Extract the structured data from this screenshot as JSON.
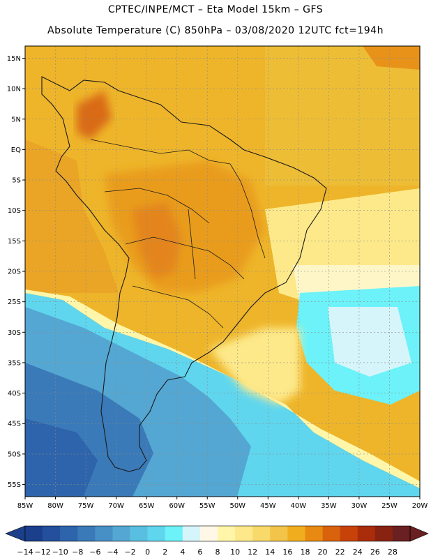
{
  "header": {
    "line1": "CPTEC/INPE/MCT –  Eta Model 15km – GFS",
    "line2": "Absolute Temperature (C) 850hPa – 03/08/2020 12UTC fct=194h"
  },
  "map": {
    "lat_labels": [
      "15N",
      "10N",
      "5N",
      "EQ",
      "5S",
      "10S",
      "15S",
      "20S",
      "25S",
      "30S",
      "35S",
      "40S",
      "45S",
      "50S",
      "55S"
    ],
    "lon_labels": [
      "85W",
      "80W",
      "75W",
      "70W",
      "65W",
      "60W",
      "55W",
      "50W",
      "45W",
      "40W",
      "35W",
      "30W",
      "25W",
      "20W"
    ],
    "lon_range": [
      -85,
      -20
    ],
    "lat_range": [
      -57,
      17
    ]
  },
  "colorbar": {
    "labels": [
      "-14",
      "-12",
      "-10",
      "-8",
      "-6",
      "-4",
      "-2",
      "0",
      "2",
      "4",
      "6",
      "8",
      "10",
      "12",
      "14",
      "16",
      "18",
      "20",
      "22",
      "24",
      "26",
      "28"
    ],
    "colors": [
      "#1b3f8b",
      "#234f9c",
      "#2e64ab",
      "#3a7ab8",
      "#4690c6",
      "#54a7d2",
      "#59bfe0",
      "#5fd6ee",
      "#6cf2f8",
      "#d6f5fb",
      "#fff8e6",
      "#fff6a9",
      "#fde98a",
      "#f7da6a",
      "#f2c44a",
      "#f0ad1d",
      "#e88a12",
      "#d9620c",
      "#c74209",
      "#a92d0b",
      "#882311",
      "#6a1f20"
    ]
  }
}
